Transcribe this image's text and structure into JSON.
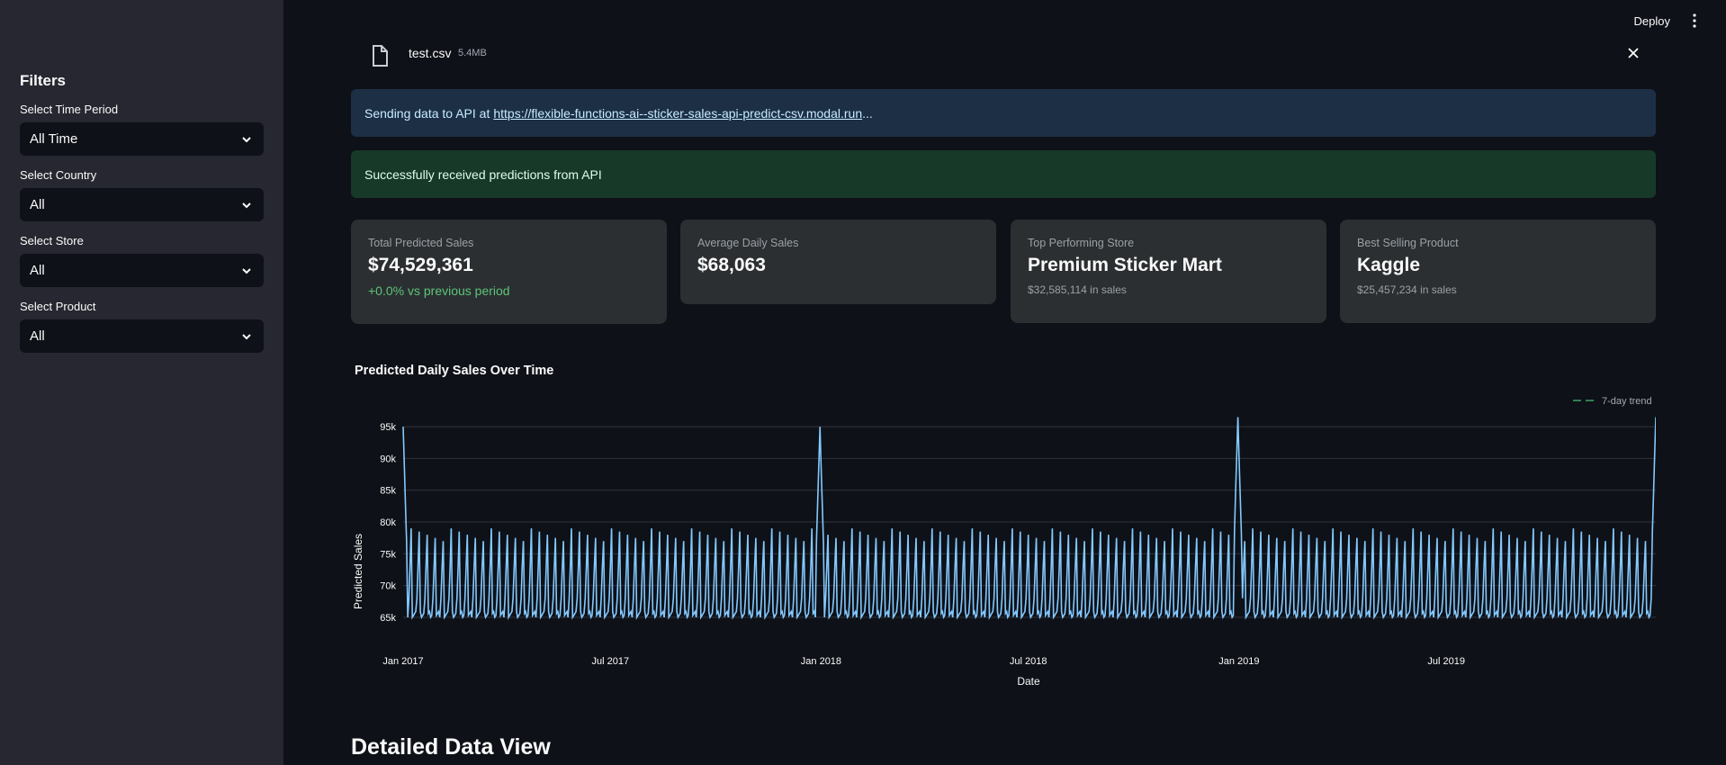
{
  "sidebar": {
    "title": "Filters",
    "filters": [
      {
        "label": "Select Time Period",
        "value": "All Time"
      },
      {
        "label": "Select Country",
        "value": "All"
      },
      {
        "label": "Select Store",
        "value": "All"
      },
      {
        "label": "Select Product",
        "value": "All"
      }
    ]
  },
  "header": {
    "deploy_label": "Deploy"
  },
  "file": {
    "name": "test.csv",
    "size": "5.4MB"
  },
  "alerts": {
    "info_prefix": "Sending data to API at",
    "info_link": "https://flexible-functions-ai--sticker-sales-api-predict-csv.modal.run",
    "info_suffix": "...",
    "success": "Successfully received predictions from API"
  },
  "metrics": [
    {
      "label": "Total Predicted Sales",
      "value": "$74,529,361",
      "delta": "+0.0% vs previous period"
    },
    {
      "label": "Average Daily Sales",
      "value": "$68,063"
    },
    {
      "label": "Top Performing Store",
      "value": "Premium Sticker Mart",
      "sub": "$32,585,114 in sales"
    },
    {
      "label": "Best Selling Product",
      "value": "Kaggle",
      "sub": "$25,457,234 in sales"
    }
  ],
  "colors": {
    "accent_positive": "#5cc47a",
    "line": "#83c9ff",
    "trend": "#3fa36a"
  },
  "chart_data": {
    "type": "line",
    "title": "Predicted Daily Sales Over Time",
    "xlabel": "Date",
    "ylabel": "Predicted Sales",
    "x_ticks": [
      "Jan 2017",
      "Jul 2017",
      "Jan 2018",
      "Jul 2018",
      "Jan 2019",
      "Jul 2019"
    ],
    "y_ticks": [
      "65k",
      "70k",
      "75k",
      "80k",
      "85k",
      "90k",
      "95k"
    ],
    "ylim": [
      63000,
      97000
    ],
    "xrange": [
      "2017-01-01",
      "2019-12-31"
    ],
    "grid": true,
    "legend_position": "top-right",
    "series": [
      {
        "name": "",
        "values_pattern": {
          "weekly_low": 65000,
          "weekly_high": 77000,
          "year_end_peaks": [
            [
              "2017-01-01",
              95000
            ],
            [
              "2017-12-31",
              95000
            ],
            [
              "2018-12-31",
              96500
            ],
            [
              "2019-12-31",
              96500
            ]
          ]
        }
      },
      {
        "name": "7-day trend"
      }
    ]
  },
  "detail": {
    "title": "Detailed Data View"
  }
}
